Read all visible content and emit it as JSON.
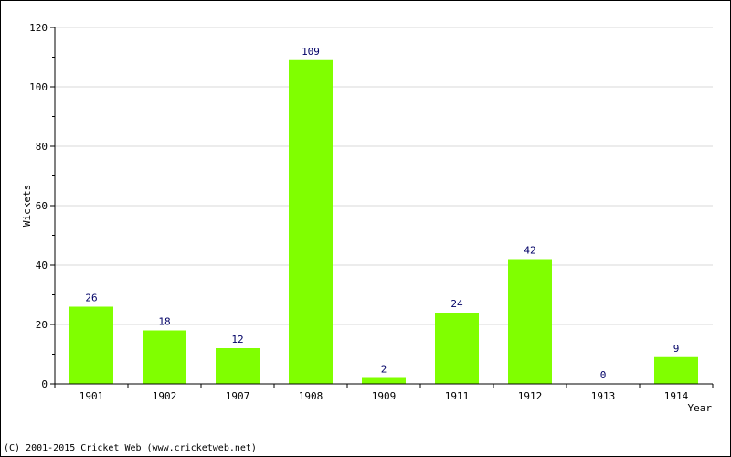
{
  "chart_data": {
    "type": "bar",
    "categories": [
      "1901",
      "1902",
      "1907",
      "1908",
      "1909",
      "1911",
      "1912",
      "1913",
      "1914"
    ],
    "values": [
      26,
      18,
      12,
      109,
      2,
      24,
      42,
      0,
      9
    ],
    "data_labels": [
      "26",
      "18",
      "12",
      "109",
      "2",
      "24",
      "42",
      "0",
      "9"
    ],
    "xlabel": "Year",
    "ylabel": "Wickets",
    "ylim": [
      0,
      120
    ],
    "yticks": [
      0,
      20,
      40,
      60,
      80,
      100,
      120
    ],
    "grid": true,
    "bar_color": "#80ff00",
    "label_color": "#000066",
    "grid_color": "#d9d9d9"
  },
  "footer": {
    "copyright": "(C) 2001-2015 Cricket Web (www.cricketweb.net)"
  }
}
